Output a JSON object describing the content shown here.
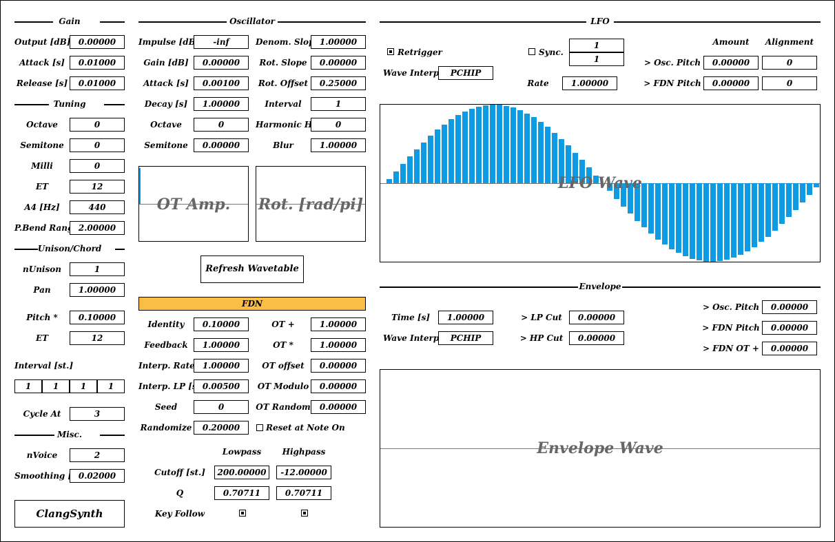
{
  "gain": {
    "title": "Gain",
    "params": [
      {
        "label": "Output [dB]",
        "value": "0.00000"
      },
      {
        "label": "Attack [s]",
        "value": "0.01000"
      },
      {
        "label": "Release [s]",
        "value": "0.01000"
      }
    ]
  },
  "tuning": {
    "title": "Tuning",
    "params": [
      {
        "label": "Octave",
        "value": "0"
      },
      {
        "label": "Semitone",
        "value": "0"
      },
      {
        "label": "Milli",
        "value": "0"
      },
      {
        "label": "ET",
        "value": "12"
      },
      {
        "label": "A4 [Hz]",
        "value": "440"
      },
      {
        "label": "P.Bend Range",
        "value": "2.00000"
      }
    ]
  },
  "unison": {
    "title": "Unison/Chord",
    "params": [
      {
        "label": "nUnison",
        "value": "1"
      },
      {
        "label": "Pan",
        "value": "1.00000"
      },
      {
        "label": "Pitch *",
        "value": "0.10000"
      },
      {
        "label": "ET",
        "value": "12"
      }
    ],
    "interval_label": "Interval [st.]",
    "intervals": [
      "1",
      "1",
      "1",
      "1"
    ],
    "cycle_label": "Cycle At",
    "cycle_value": "3"
  },
  "misc": {
    "title": "Misc.",
    "params": [
      {
        "label": "nVoice",
        "value": "2"
      },
      {
        "label": "Smoothing [s]",
        "value": "0.02000"
      }
    ]
  },
  "brand": "ClangSynth",
  "oscillator": {
    "title": "Oscillator",
    "left": [
      {
        "label": "Impulse [dB]",
        "value": "-inf"
      },
      {
        "label": "Gain [dB]",
        "value": "0.00000"
      },
      {
        "label": "Attack [s]",
        "value": "0.00100"
      },
      {
        "label": "Decay [s]",
        "value": "1.00000"
      },
      {
        "label": "Octave",
        "value": "0"
      },
      {
        "label": "Semitone",
        "value": "0.00000"
      }
    ],
    "right": [
      {
        "label": "Denom. Slope",
        "value": "1.00000"
      },
      {
        "label": "Rot. Slope",
        "value": "0.00000"
      },
      {
        "label": "Rot. Offset",
        "value": "0.25000"
      },
      {
        "label": "Interval",
        "value": "1"
      },
      {
        "label": "Harmonic HP",
        "value": "0"
      },
      {
        "label": "Blur",
        "value": "1.00000"
      }
    ],
    "ot_amp_title": "OT Amp.",
    "rot_title": "Rot. [rad/pi]",
    "refresh_label": "Refresh Wavetable"
  },
  "fdn": {
    "title": "FDN",
    "left": [
      {
        "label": "Identity",
        "value": "0.10000"
      },
      {
        "label": "Feedback",
        "value": "1.00000"
      },
      {
        "label": "Interp. Rate",
        "value": "1.00000"
      },
      {
        "label": "Interp. LP [s]",
        "value": "0.00500"
      },
      {
        "label": "Seed",
        "value": "0"
      },
      {
        "label": "Randomize",
        "value": "0.20000"
      }
    ],
    "right": [
      {
        "label": "OT +",
        "value": "1.00000"
      },
      {
        "label": "OT *",
        "value": "1.00000"
      },
      {
        "label": "OT offset",
        "value": "0.00000"
      },
      {
        "label": "OT Modulo",
        "value": "0.00000"
      },
      {
        "label": "OT Random",
        "value": "0.00000"
      }
    ],
    "reset_label": "Reset at Note On",
    "lowpass_label": "Lowpass",
    "highpass_label": "Highpass",
    "cutoff_label": "Cutoff [st.]",
    "cutoff_lp": "200.00000",
    "cutoff_hp": "-12.00000",
    "q_label": "Q",
    "q_lp": "0.70711",
    "q_hp": "0.70711",
    "keyfollow_label": "Key Follow"
  },
  "lfo": {
    "title": "LFO",
    "retrigger_label": "Retrigger",
    "wave_interp_label": "Wave Interp.",
    "wave_interp_value": "PCHIP",
    "sync_label": "Sync.",
    "sync_num": "1",
    "sync_den": "1",
    "rate_label": "Rate",
    "rate_value": "1.00000",
    "amount_label": "Amount",
    "alignment_label": "Alignment",
    "osc_pitch_label": "> Osc. Pitch",
    "osc_pitch_amount": "0.00000",
    "osc_pitch_align": "0",
    "fdn_pitch_label": "> FDN Pitch",
    "fdn_pitch_amount": "0.00000",
    "fdn_pitch_align": "0",
    "wave_title": "LFO Wave",
    "wave_color": "#0e9be3"
  },
  "envelope": {
    "title": "Envelope",
    "time_label": "Time [s]",
    "time_value": "1.00000",
    "wave_interp_label": "Wave Interp.",
    "wave_interp_value": "PCHIP",
    "lp_cut_label": "> LP Cut",
    "lp_cut_value": "0.00000",
    "hp_cut_label": "> HP Cut",
    "hp_cut_value": "0.00000",
    "osc_pitch_label": "> Osc. Pitch",
    "osc_pitch_value": "0.00000",
    "fdn_pitch_label": "> FDN Pitch",
    "fdn_pitch_value": "0.00000",
    "fdn_ot_label": "> FDN OT +",
    "fdn_ot_value": "0.00000",
    "wave_title": "Envelope Wave"
  }
}
